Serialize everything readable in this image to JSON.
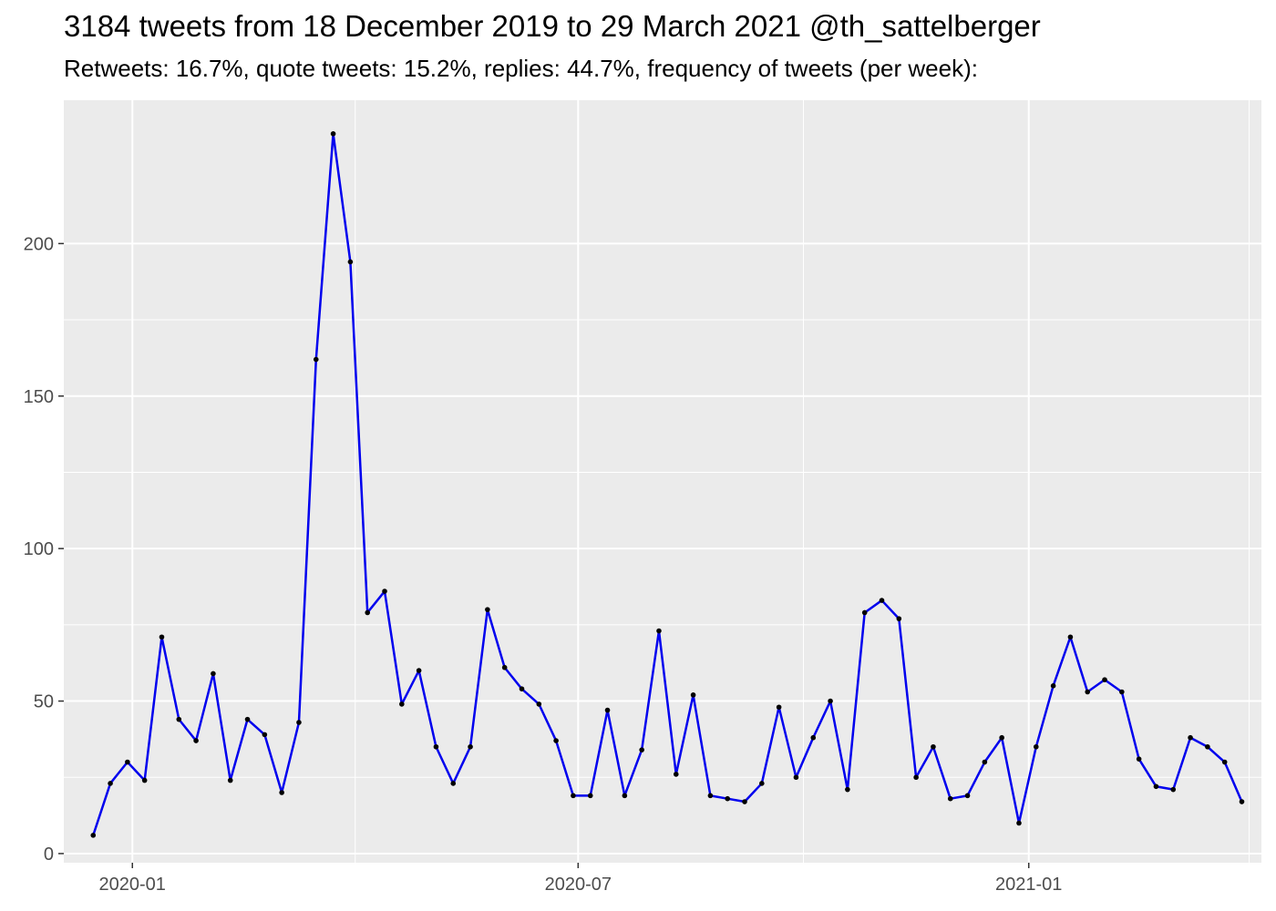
{
  "chart_data": {
    "type": "line",
    "title": "3184 tweets from 18 December 2019 to 29 March 2021 @th_sattelberger",
    "subtitle": "Retweets: 16.7%, quote tweets: 15.2%, replies: 44.7%, frequency of tweets (per week):",
    "xlabel": "",
    "ylabel": "",
    "x_type": "date",
    "xlim": [
      "2019-12-04",
      "2021-04-06"
    ],
    "ylim": [
      -3,
      247
    ],
    "x_ticks": [
      "2020-01-01",
      "2020-07-01",
      "2021-01-01"
    ],
    "x_tick_labels": [
      "2020-01",
      "2020-07",
      "2021-01"
    ],
    "y_ticks": [
      0,
      50,
      100,
      150,
      200
    ],
    "y_tick_labels": [
      "0",
      "50",
      "100",
      "150",
      "200"
    ],
    "grid": true,
    "legend": "none",
    "line_color": "#0000ee",
    "point_color": "#000000",
    "panel_background": "#ebebeb",
    "series": [
      {
        "x": [
          "2019-12-16",
          "2019-12-23",
          "2019-12-30",
          "2020-01-06",
          "2020-01-13",
          "2020-01-20",
          "2020-01-27",
          "2020-02-03",
          "2020-02-10",
          "2020-02-17",
          "2020-02-24",
          "2020-03-02",
          "2020-03-09",
          "2020-03-16",
          "2020-03-23",
          "2020-03-30",
          "2020-04-06",
          "2020-04-13",
          "2020-04-20",
          "2020-04-27",
          "2020-05-04",
          "2020-05-11",
          "2020-05-18",
          "2020-05-25",
          "2020-06-01",
          "2020-06-08",
          "2020-06-15",
          "2020-06-22",
          "2020-06-29",
          "2020-07-06",
          "2020-07-13",
          "2020-07-20",
          "2020-07-27",
          "2020-08-03",
          "2020-08-10",
          "2020-08-17",
          "2020-08-24",
          "2020-08-31",
          "2020-09-07",
          "2020-09-14",
          "2020-09-21",
          "2020-09-28",
          "2020-10-05",
          "2020-10-12",
          "2020-10-19",
          "2020-10-26",
          "2020-11-02",
          "2020-11-09",
          "2020-11-16",
          "2020-11-23",
          "2020-11-30",
          "2020-12-07",
          "2020-12-14",
          "2020-12-21",
          "2020-12-28",
          "2021-01-04",
          "2021-01-11",
          "2021-01-18",
          "2021-01-25",
          "2021-02-01",
          "2021-02-08",
          "2021-02-15",
          "2021-02-22",
          "2021-03-01",
          "2021-03-08",
          "2021-03-15",
          "2021-03-22",
          "2021-03-29"
        ],
        "values": [
          6,
          23,
          30,
          24,
          71,
          44,
          37,
          59,
          24,
          44,
          39,
          20,
          43,
          162,
          236,
          194,
          79,
          86,
          49,
          60,
          35,
          23,
          35,
          80,
          61,
          54,
          49,
          37,
          19,
          19,
          47,
          19,
          34,
          73,
          26,
          52,
          19,
          18,
          17,
          23,
          48,
          25,
          38,
          50,
          21,
          79,
          83,
          77,
          25,
          35,
          18,
          19,
          30,
          38,
          10,
          35,
          55,
          71,
          53,
          57,
          53,
          31,
          22,
          21,
          38,
          35,
          30,
          17
        ]
      }
    ]
  }
}
